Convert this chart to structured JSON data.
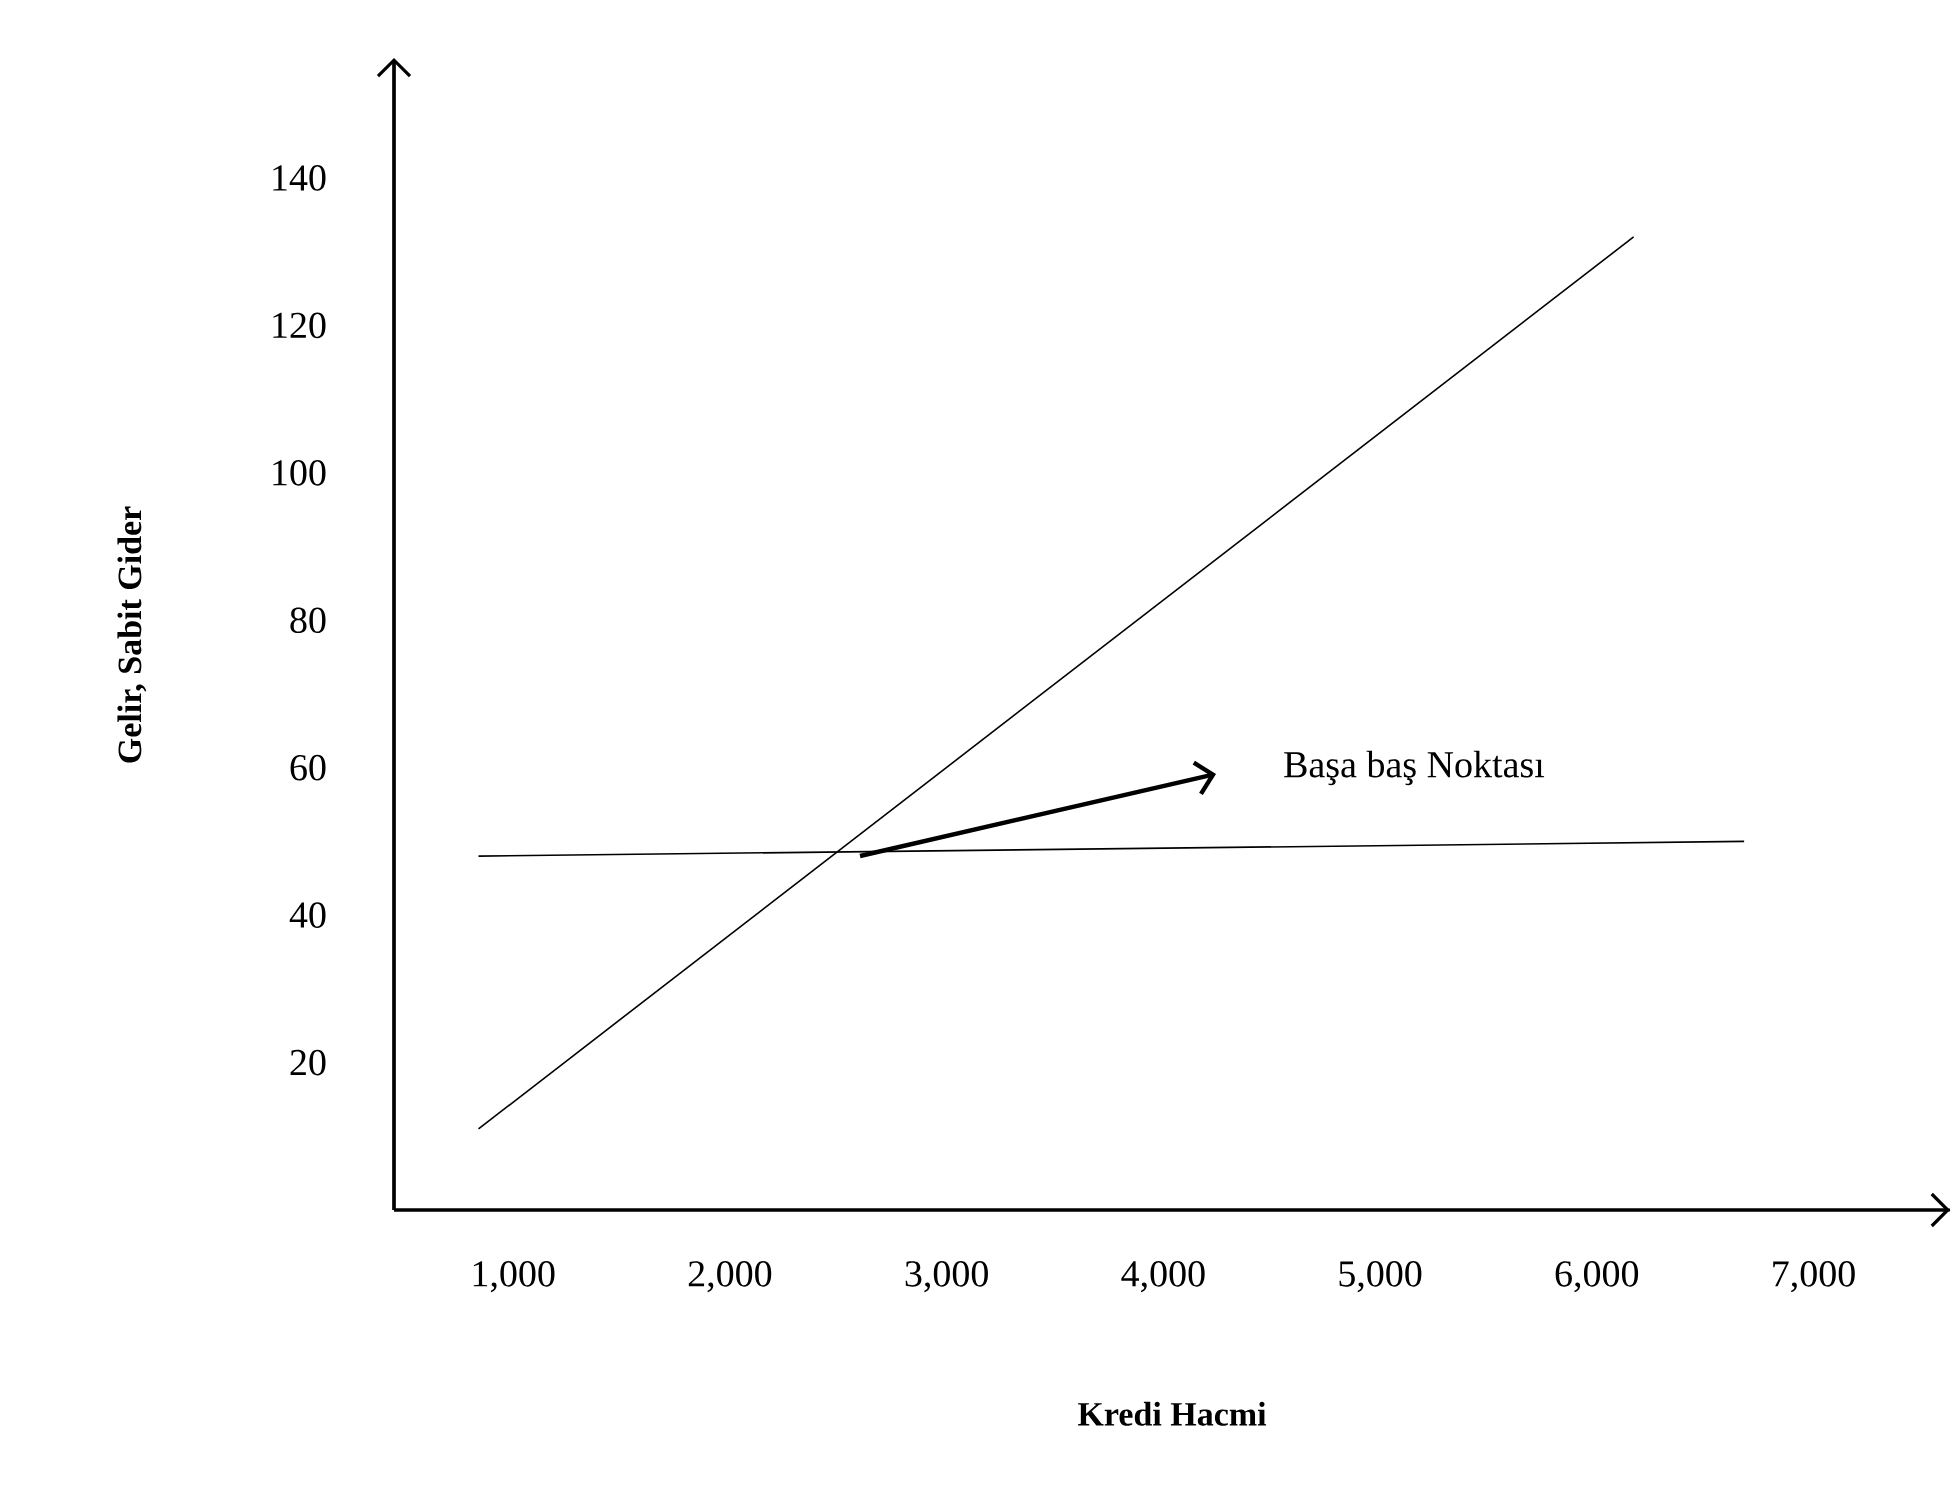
{
  "chart_data": {
    "type": "line",
    "xlabel": "Kredi Hacmi",
    "ylabel": "Gelir,  Sabit Gider",
    "series": [
      {
        "color": "#000000",
        "x": [
          840,
          6170
        ],
        "values": [
          11,
          132
        ]
      },
      {
        "color": "#000000",
        "x": [
          840,
          6680
        ],
        "values": [
          48,
          50
        ]
      }
    ],
    "annotations": [
      "Başa baş Noktası"
    ],
    "xlim": [
      450,
      7630
    ],
    "ylim": [
      0,
      156
    ],
    "xticks": [
      {
        "value": 1000,
        "label": "1,000"
      },
      {
        "value": 2000,
        "label": "2,000"
      },
      {
        "value": 3000,
        "label": "3,000"
      },
      {
        "value": 4000,
        "label": "4,000"
      },
      {
        "value": 5000,
        "label": "5,000"
      },
      {
        "value": 6000,
        "label": "6,000"
      },
      {
        "value": 7000,
        "label": "7,000"
      }
    ],
    "yticks": [
      20,
      40,
      60,
      80,
      100,
      120,
      140
    ]
  }
}
